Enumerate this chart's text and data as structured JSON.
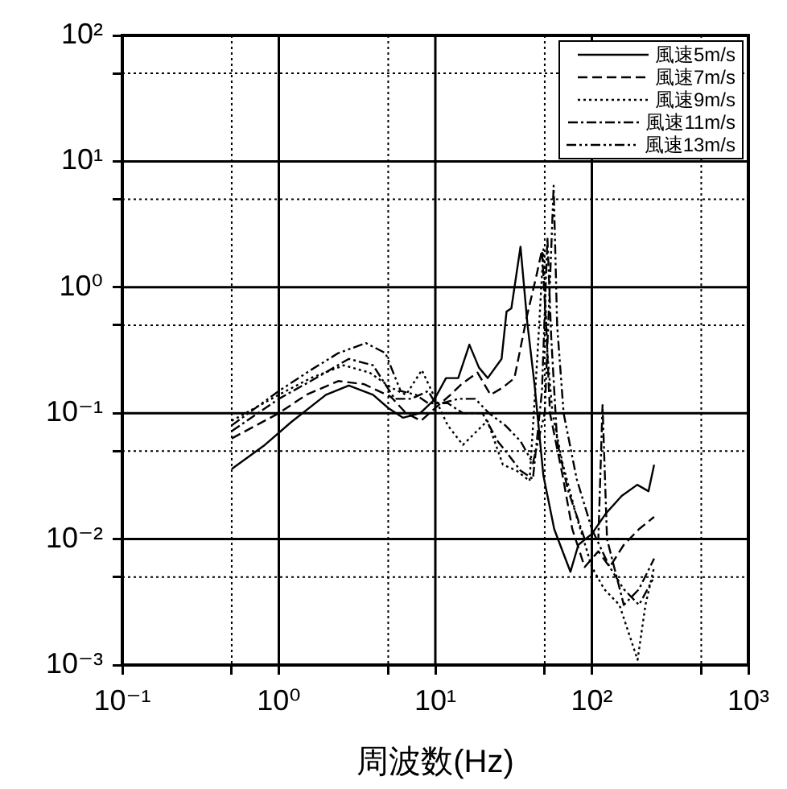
{
  "chart_data": {
    "type": "line",
    "xlabel": "周波数(Hz)",
    "log": "xy",
    "grid": true,
    "legend": "top right",
    "marker": "none",
    "xlim": [
      0.1,
      1000
    ],
    "ylim": [
      0.001,
      100
    ],
    "xticks": [
      {
        "value": 0.1,
        "label": "10⁻¹"
      },
      {
        "value": 0.5,
        "label": null
      },
      {
        "value": 1,
        "label": "10⁰"
      },
      {
        "value": 5,
        "label": null
      },
      {
        "value": 10,
        "label": "10¹"
      },
      {
        "value": 50,
        "label": null
      },
      {
        "value": 100,
        "label": "10²"
      },
      {
        "value": 500,
        "label": null
      },
      {
        "value": 1000,
        "label": "10³"
      }
    ],
    "yticks": [
      {
        "value": 0.001,
        "label": "10⁻³"
      },
      {
        "value": 0.005,
        "label": null
      },
      {
        "value": 0.01,
        "label": "10⁻²"
      },
      {
        "value": 0.05,
        "label": null
      },
      {
        "value": 0.1,
        "label": "10⁻¹"
      },
      {
        "value": 0.5,
        "label": null
      },
      {
        "value": 1,
        "label": "10⁰"
      },
      {
        "value": 5,
        "label": null
      },
      {
        "value": 10,
        "label": "10¹"
      },
      {
        "value": 50,
        "label": null
      },
      {
        "value": 100,
        "label": "10²"
      }
    ],
    "series": [
      {
        "name": "風速5m/s",
        "color": "#000000",
        "line_style": "solid",
        "x": [
          0.5,
          0.8,
          1.2,
          2,
          2.8,
          4,
          5,
          6.2,
          8,
          9.8,
          11.7,
          14,
          16.5,
          19,
          21.6,
          26.5,
          28.5,
          30.6,
          35,
          38.7,
          43,
          49,
          57.5,
          65,
          73,
          82,
          100,
          123,
          155,
          195,
          230,
          250
        ],
        "values": [
          0.036,
          0.055,
          0.085,
          0.14,
          0.166,
          0.14,
          0.11,
          0.092,
          0.1,
          0.127,
          0.19,
          0.19,
          0.35,
          0.23,
          0.19,
          0.27,
          0.64,
          0.68,
          2.1,
          0.52,
          0.17,
          0.032,
          0.012,
          0.008,
          0.0055,
          0.009,
          0.011,
          0.016,
          0.022,
          0.027,
          0.024,
          0.039
        ]
      },
      {
        "name": "風速7m/s",
        "color": "#000000",
        "line_style": "dashed",
        "x": [
          0.5,
          1,
          1.5,
          2.4,
          3.5,
          5.2,
          6.5,
          8.1,
          10,
          12.5,
          14.7,
          18.6,
          22.5,
          27,
          32,
          38.6,
          44,
          48,
          51,
          54,
          65,
          75,
          90,
          110,
          130,
          160,
          200,
          250
        ],
        "values": [
          0.063,
          0.1,
          0.14,
          0.18,
          0.17,
          0.135,
          0.1,
          0.087,
          0.11,
          0.14,
          0.17,
          0.21,
          0.14,
          0.16,
          0.19,
          0.6,
          1.2,
          1.97,
          0.5,
          0.1,
          0.032,
          0.012,
          0.006,
          0.008,
          0.006,
          0.009,
          0.012,
          0.015
        ]
      },
      {
        "name": "風速9m/s",
        "color": "#000000",
        "line_style": "dotted",
        "x": [
          0.5,
          1,
          1.6,
          2.6,
          3.8,
          5.2,
          6.5,
          8.2,
          10,
          12,
          15,
          18,
          21.5,
          27,
          33,
          40,
          45,
          49,
          52,
          56,
          65,
          80,
          100,
          120,
          150,
          196,
          220,
          250
        ],
        "values": [
          0.087,
          0.14,
          0.19,
          0.24,
          0.21,
          0.16,
          0.14,
          0.22,
          0.13,
          0.08,
          0.056,
          0.07,
          0.087,
          0.039,
          0.035,
          0.029,
          0.3,
          2.0,
          0.3,
          0.1,
          0.04,
          0.015,
          0.006,
          0.004,
          0.003,
          0.0011,
          0.003,
          0.006
        ]
      },
      {
        "name": "風速11m/s",
        "color": "#000000",
        "line_style": "dashdot",
        "x": [
          0.5,
          1,
          1.6,
          2.8,
          4,
          5.5,
          7,
          9,
          10,
          12,
          15,
          20,
          25,
          30,
          35,
          42,
          48,
          52,
          55,
          60,
          70,
          90,
          110,
          117,
          125,
          160,
          200,
          250
        ],
        "values": [
          0.072,
          0.13,
          0.18,
          0.27,
          0.24,
          0.13,
          0.13,
          0.15,
          0.12,
          0.12,
          0.1,
          0.1,
          0.06,
          0.045,
          0.035,
          0.03,
          0.15,
          2.5,
          0.4,
          0.06,
          0.025,
          0.01,
          0.01,
          0.116,
          0.01,
          0.003,
          0.004,
          0.007
        ]
      },
      {
        "name": "風速13m/s",
        "color": "#000000",
        "line_style": "dashdotdot",
        "x": [
          0.5,
          1,
          1.6,
          2.4,
          3.6,
          4.8,
          6,
          7.5,
          9,
          11,
          14,
          18,
          22,
          28,
          35,
          42,
          50,
          55,
          57,
          60,
          66,
          80,
          100,
          130,
          160,
          200,
          250
        ],
        "values": [
          0.08,
          0.15,
          0.22,
          0.3,
          0.36,
          0.3,
          0.15,
          0.14,
          0.12,
          0.12,
          0.13,
          0.13,
          0.1,
          0.08,
          0.06,
          0.04,
          0.1,
          2,
          6.4,
          0.5,
          0.1,
          0.03,
          0.012,
          0.006,
          0.004,
          0.003,
          0.005
        ]
      }
    ]
  }
}
